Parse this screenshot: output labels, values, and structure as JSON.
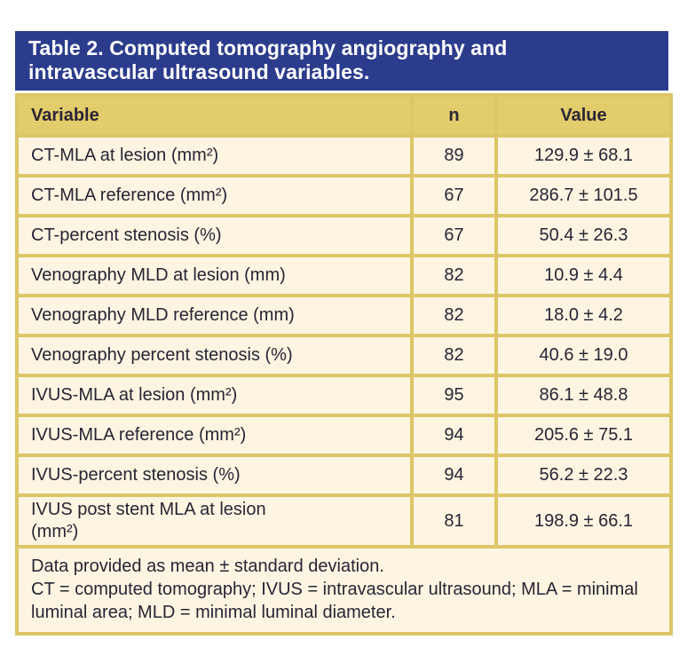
{
  "colors": {
    "title_bar_bg": "#2c3c8c",
    "title_text": "#ffffff",
    "header_row_bg": "#e2cc6b",
    "row_bg": "#fdf5e1",
    "border": "#dcc667",
    "body_text": "#282436"
  },
  "table": {
    "title_line1": "Table 2. Computed tomography angiography and",
    "title_line2": "intravascular ultrasound variables.",
    "columns": [
      "Variable",
      "n",
      "Value"
    ],
    "rows": [
      {
        "variable": "CT-MLA at lesion (mm²)",
        "n": "89",
        "value": "129.9 ± 68.1"
      },
      {
        "variable": "CT-MLA reference (mm²)",
        "n": "67",
        "value": "286.7 ± 101.5"
      },
      {
        "variable": "CT-percent stenosis (%)",
        "n": "67",
        "value": "50.4 ± 26.3"
      },
      {
        "variable": "Venography MLD at lesion (mm)",
        "n": "82",
        "value": "10.9 ± 4.4"
      },
      {
        "variable": "Venography MLD reference (mm)",
        "n": "82",
        "value": "18.0 ± 4.2"
      },
      {
        "variable": "Venography percent stenosis (%)",
        "n": "82",
        "value": "40.6 ± 19.0"
      },
      {
        "variable": "IVUS-MLA at lesion (mm²)",
        "n": "95",
        "value": "86.1 ± 48.8"
      },
      {
        "variable": "IVUS-MLA reference (mm²)",
        "n": "94",
        "value": "205.6 ± 75.1"
      },
      {
        "variable": "IVUS-percent stenosis (%)",
        "n": "94",
        "value": "56.2 ± 22.3"
      },
      {
        "variable": "IVUS post stent MLA at lesion\n(mm²)",
        "n": "81",
        "value": "198.9 ± 66.1"
      }
    ],
    "footnotes": [
      "Data provided as mean ± standard deviation.",
      "CT = computed tomography; IVUS = intravascular ultrasound; MLA = minimal luminal area; MLD = minimal luminal diameter."
    ]
  }
}
